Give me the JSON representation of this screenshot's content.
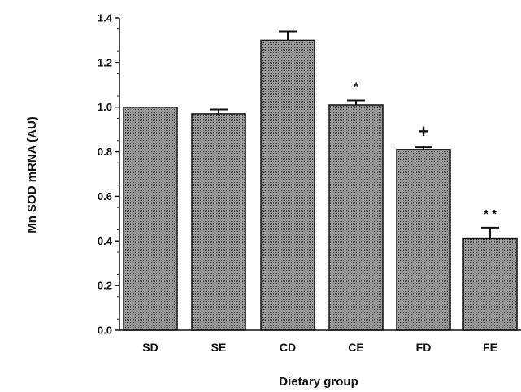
{
  "chart_data": {
    "type": "bar",
    "categories": [
      "SD",
      "SE",
      "CD",
      "CE",
      "FD",
      "FE"
    ],
    "values": [
      1.0,
      0.97,
      1.3,
      1.01,
      0.81,
      0.41
    ],
    "errors": [
      0.0,
      0.02,
      0.04,
      0.02,
      0.01,
      0.05
    ],
    "annotations": [
      "",
      "",
      "",
      "*",
      "+",
      "* *"
    ],
    "xlabel": "Dietary group",
    "ylabel": "Mn SOD mRNA (AU)",
    "ylim": [
      0.0,
      1.4
    ],
    "yticks": [
      "0.0",
      "0.2",
      "0.4",
      "0.6",
      "0.8",
      "1.0",
      "1.2",
      "1.4"
    ],
    "grid": false,
    "colors": {
      "bar_fill": "#8a8a8a",
      "bar_stroke": "#111111",
      "axis": "#111111"
    }
  }
}
